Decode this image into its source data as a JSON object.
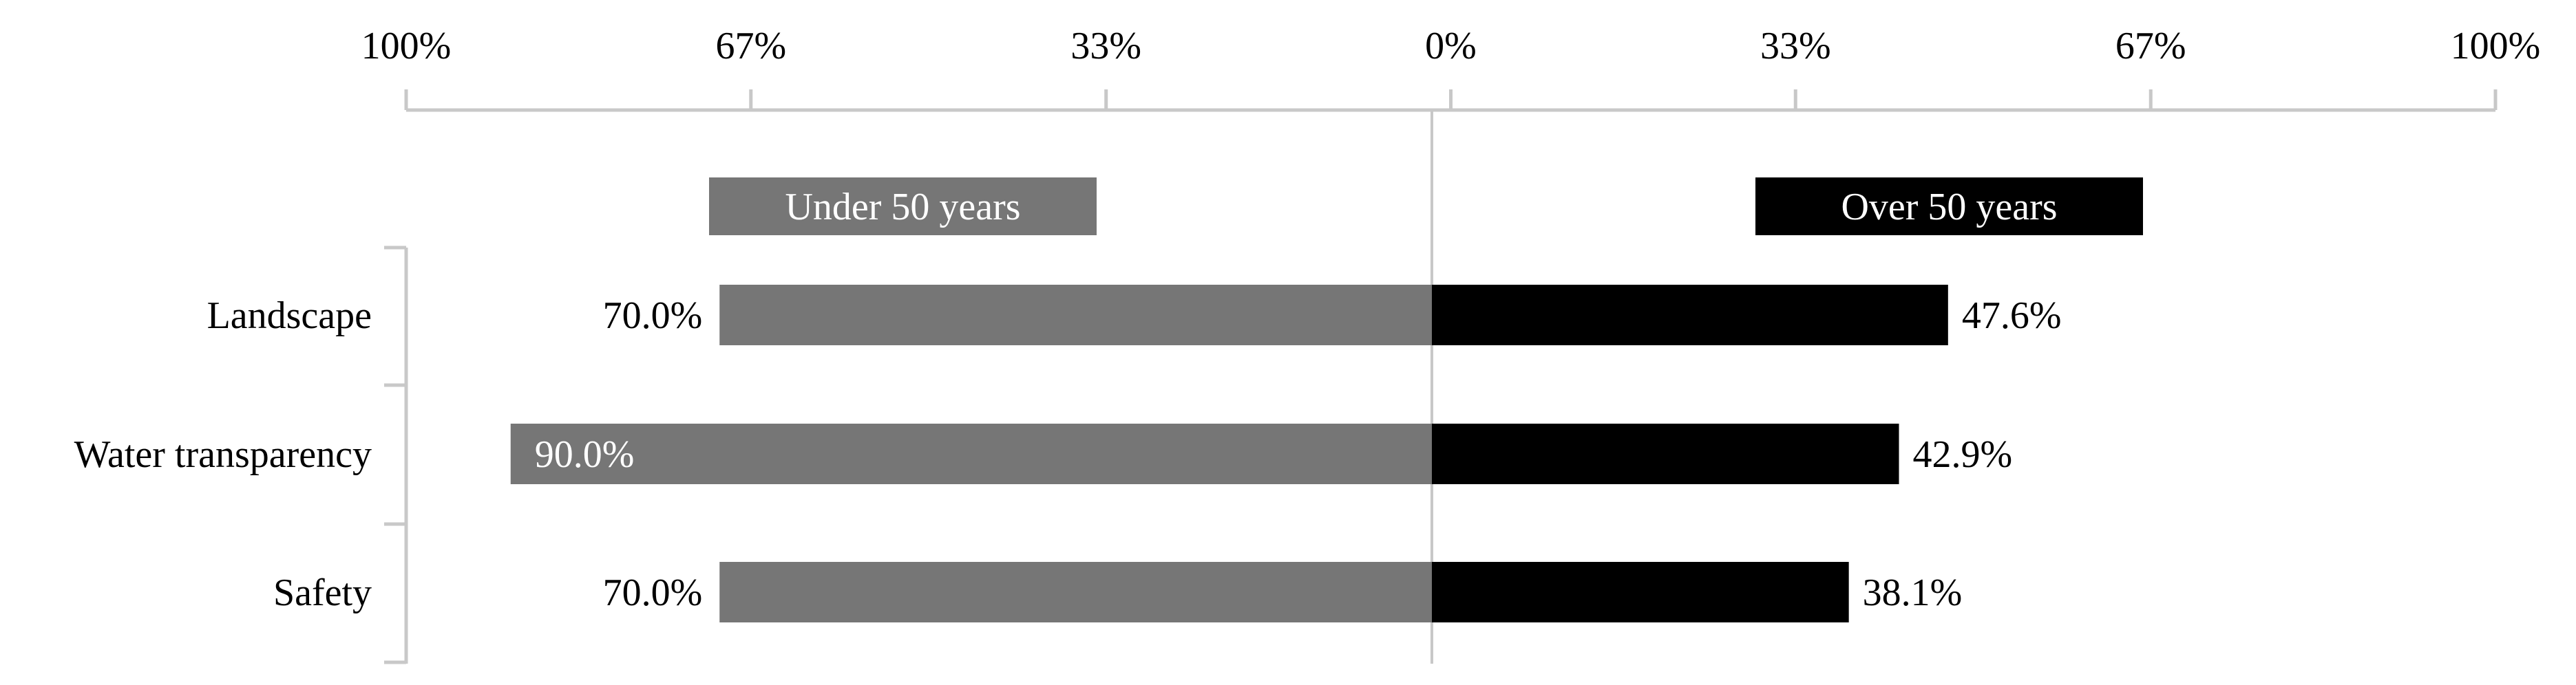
{
  "chart_data": {
    "type": "bar",
    "orientation": "horizontal-diverging",
    "title": "",
    "xlabel": "",
    "ylabel": "",
    "xlim": [
      -100,
      100
    ],
    "grid": false,
    "legend_position": "top",
    "tick_values": [
      -100,
      -67,
      -33,
      0,
      33,
      67,
      100
    ],
    "tick_labels": [
      "100%",
      "67%",
      "33%",
      "0%",
      "33%",
      "67%",
      "100%"
    ],
    "categories": [
      "Landscape",
      "Water transparency",
      "Safety"
    ],
    "series": [
      {
        "name": "Under 50 years",
        "side": "left",
        "color": "#767676",
        "values": [
          70.0,
          90.0,
          70.0
        ],
        "labels": [
          "70.0%",
          "90.0%",
          "70.0%"
        ]
      },
      {
        "name": "Over 50 years",
        "side": "right",
        "color": "#000000",
        "values": [
          47.6,
          42.9,
          38.1
        ],
        "labels": [
          "47.6%",
          "42.9%",
          "38.1%"
        ]
      }
    ]
  },
  "colors": {
    "axis": "#c8c8c8",
    "text": "#000000",
    "inside_label": "#ffffff"
  }
}
